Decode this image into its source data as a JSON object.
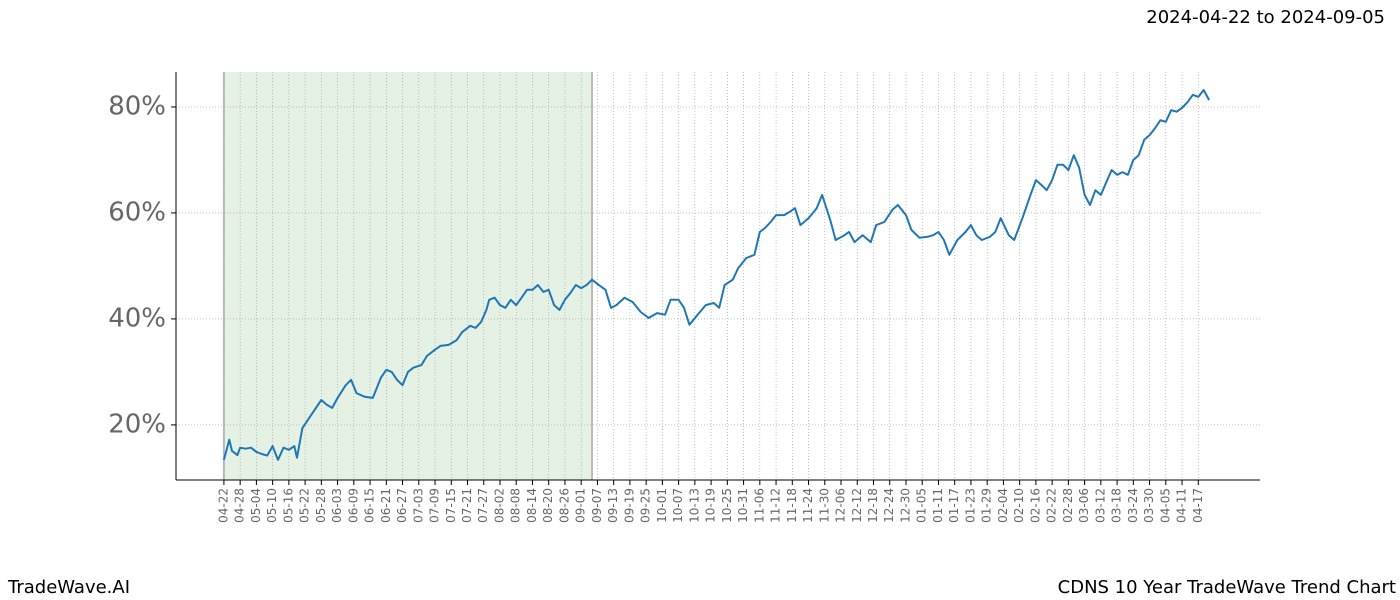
{
  "chart_data": {
    "type": "line",
    "title": "2024-04-22 to 2024-09-05",
    "footer_left": "TradeWave.AI",
    "footer_right": "CDNS 10 Year TradeWave Trend Chart",
    "color": "#1f77b4",
    "grid": true,
    "highlight_range": [
      0,
      136
    ],
    "highlight_color": "#e5f1e5",
    "xlim": [
      -17.7,
      382.8
    ],
    "ylim": [
      9.6,
      86.6
    ],
    "yticks": [
      {
        "value": 20,
        "label": "20%"
      },
      {
        "value": 40,
        "label": "40%"
      },
      {
        "value": 60,
        "label": "60%"
      },
      {
        "value": 80,
        "label": "80%"
      }
    ],
    "xticks": [
      {
        "value": 0,
        "label": "04-22"
      },
      {
        "value": 6,
        "label": "04-28"
      },
      {
        "value": 12,
        "label": "05-04"
      },
      {
        "value": 18,
        "label": "05-10"
      },
      {
        "value": 24,
        "label": "05-16"
      },
      {
        "value": 30,
        "label": "05-22"
      },
      {
        "value": 36,
        "label": "05-28"
      },
      {
        "value": 42,
        "label": "06-03"
      },
      {
        "value": 48,
        "label": "06-09"
      },
      {
        "value": 54,
        "label": "06-15"
      },
      {
        "value": 60,
        "label": "06-21"
      },
      {
        "value": 66,
        "label": "06-27"
      },
      {
        "value": 72,
        "label": "07-03"
      },
      {
        "value": 78,
        "label": "07-09"
      },
      {
        "value": 84,
        "label": "07-15"
      },
      {
        "value": 90,
        "label": "07-21"
      },
      {
        "value": 96,
        "label": "07-27"
      },
      {
        "value": 102,
        "label": "08-02"
      },
      {
        "value": 108,
        "label": "08-08"
      },
      {
        "value": 114,
        "label": "08-14"
      },
      {
        "value": 120,
        "label": "08-20"
      },
      {
        "value": 126,
        "label": "08-26"
      },
      {
        "value": 132,
        "label": "09-01"
      },
      {
        "value": 138,
        "label": "09-07"
      },
      {
        "value": 144,
        "label": "09-13"
      },
      {
        "value": 150,
        "label": "09-19"
      },
      {
        "value": 156,
        "label": "09-25"
      },
      {
        "value": 162,
        "label": "10-01"
      },
      {
        "value": 168,
        "label": "10-07"
      },
      {
        "value": 174,
        "label": "10-13"
      },
      {
        "value": 180,
        "label": "10-19"
      },
      {
        "value": 186,
        "label": "10-25"
      },
      {
        "value": 192,
        "label": "10-31"
      },
      {
        "value": 198,
        "label": "11-06"
      },
      {
        "value": 204,
        "label": "11-12"
      },
      {
        "value": 210,
        "label": "11-18"
      },
      {
        "value": 216,
        "label": "11-24"
      },
      {
        "value": 222,
        "label": "11-30"
      },
      {
        "value": 228,
        "label": "12-06"
      },
      {
        "value": 234,
        "label": "12-12"
      },
      {
        "value": 240,
        "label": "12-18"
      },
      {
        "value": 246,
        "label": "12-24"
      },
      {
        "value": 252,
        "label": "12-30"
      },
      {
        "value": 258,
        "label": "01-05"
      },
      {
        "value": 264,
        "label": "01-11"
      },
      {
        "value": 270,
        "label": "01-17"
      },
      {
        "value": 276,
        "label": "01-23"
      },
      {
        "value": 282,
        "label": "01-29"
      },
      {
        "value": 288,
        "label": "02-04"
      },
      {
        "value": 294,
        "label": "02-10"
      },
      {
        "value": 300,
        "label": "02-16"
      },
      {
        "value": 306,
        "label": "02-22"
      },
      {
        "value": 312,
        "label": "02-28"
      },
      {
        "value": 318,
        "label": "03-06"
      },
      {
        "value": 324,
        "label": "03-12"
      },
      {
        "value": 330,
        "label": "03-18"
      },
      {
        "value": 336,
        "label": "03-24"
      },
      {
        "value": 342,
        "label": "03-30"
      },
      {
        "value": 348,
        "label": "04-05"
      },
      {
        "value": 354,
        "label": "04-11"
      },
      {
        "value": 360,
        "label": "04-17"
      }
    ],
    "x": [
      0,
      2,
      3,
      5,
      6,
      8,
      10,
      12,
      14,
      16,
      18,
      20,
      22,
      24,
      26,
      27,
      29,
      31,
      34,
      36,
      38,
      40,
      42,
      45,
      47,
      49,
      52,
      55,
      58,
      60,
      62,
      64,
      66,
      68,
      70,
      73,
      75,
      78,
      80,
      83,
      86,
      88,
      91,
      93,
      95,
      97,
      98,
      100,
      102,
      104,
      106,
      108,
      110,
      112,
      114,
      116,
      118,
      120,
      122,
      124,
      126,
      128,
      130,
      132,
      134,
      136,
      138,
      141,
      143,
      145,
      148,
      151,
      154,
      157,
      160,
      163,
      165,
      168,
      170,
      172,
      175,
      178,
      181,
      183,
      185,
      188,
      190,
      193,
      196,
      198,
      200,
      202,
      204,
      207,
      209,
      211,
      213,
      216,
      219,
      221,
      224,
      226,
      229,
      231,
      233,
      236,
      239,
      241,
      244,
      247,
      249,
      252,
      254,
      257,
      260,
      262,
      264,
      266,
      268,
      271,
      274,
      276,
      278,
      280,
      283,
      285,
      287,
      290,
      292,
      295,
      298,
      300,
      302,
      304,
      306,
      308,
      310,
      312,
      314,
      316,
      318,
      320,
      322,
      324,
      326,
      328,
      330,
      332,
      334,
      336,
      338,
      340,
      342,
      344,
      346,
      348,
      350,
      352,
      354,
      356,
      358,
      360,
      362,
      364
    ],
    "values": [
      13.4,
      17.2,
      15.1,
      14.3,
      15.7,
      15.5,
      15.7,
      14.9,
      14.5,
      14.2,
      16,
      13.4,
      15.7,
      15.3,
      16,
      13.8,
      19.4,
      20.9,
      23.2,
      24.7,
      23.8,
      23.2,
      25.1,
      27.5,
      28.5,
      26,
      25.3,
      25.1,
      28.9,
      30.4,
      30,
      28.5,
      27.5,
      30,
      30.8,
      31.3,
      33,
      34.2,
      34.9,
      35.1,
      36,
      37.5,
      38.7,
      38.3,
      39.4,
      41.7,
      43.6,
      44,
      42.6,
      42.1,
      43.6,
      42.6,
      44,
      45.5,
      45.5,
      46.4,
      45.1,
      45.5,
      42.6,
      41.7,
      43.6,
      44.9,
      46.4,
      45.8,
      46.4,
      47.4,
      46.6,
      45.5,
      42.1,
      42.6,
      44,
      43.2,
      41.3,
      40.2,
      41.1,
      40.8,
      43.6,
      43.6,
      42.1,
      38.9,
      40.8,
      42.6,
      43,
      42.1,
      46.4,
      47.4,
      49.6,
      51.5,
      52.1,
      56.4,
      57.2,
      58.3,
      59.6,
      59.6,
      60.2,
      60.9,
      57.7,
      59,
      60.9,
      63.4,
      58.7,
      54.9,
      55.7,
      56.4,
      54.5,
      55.8,
      54.5,
      57.7,
      58.3,
      60.6,
      61.5,
      59.6,
      56.8,
      55.3,
      55.5,
      55.8,
      56.4,
      54.9,
      52.1,
      54.9,
      56.4,
      57.7,
      55.8,
      54.9,
      55.5,
      56.4,
      59,
      55.8,
      54.9,
      59,
      63.4,
      66.2,
      65.3,
      64.3,
      66.2,
      69.1,
      69.1,
      68.1,
      70.9,
      68.5,
      63.4,
      61.5,
      64.3,
      63.4,
      65.8,
      68.1,
      67.2,
      67.7,
      67.2,
      70,
      70.9,
      73.8,
      74.7,
      76,
      77.5,
      77.2,
      79.4,
      79.1,
      79.8,
      80.9,
      82.3,
      81.9,
      83.2,
      81.3
    ]
  }
}
